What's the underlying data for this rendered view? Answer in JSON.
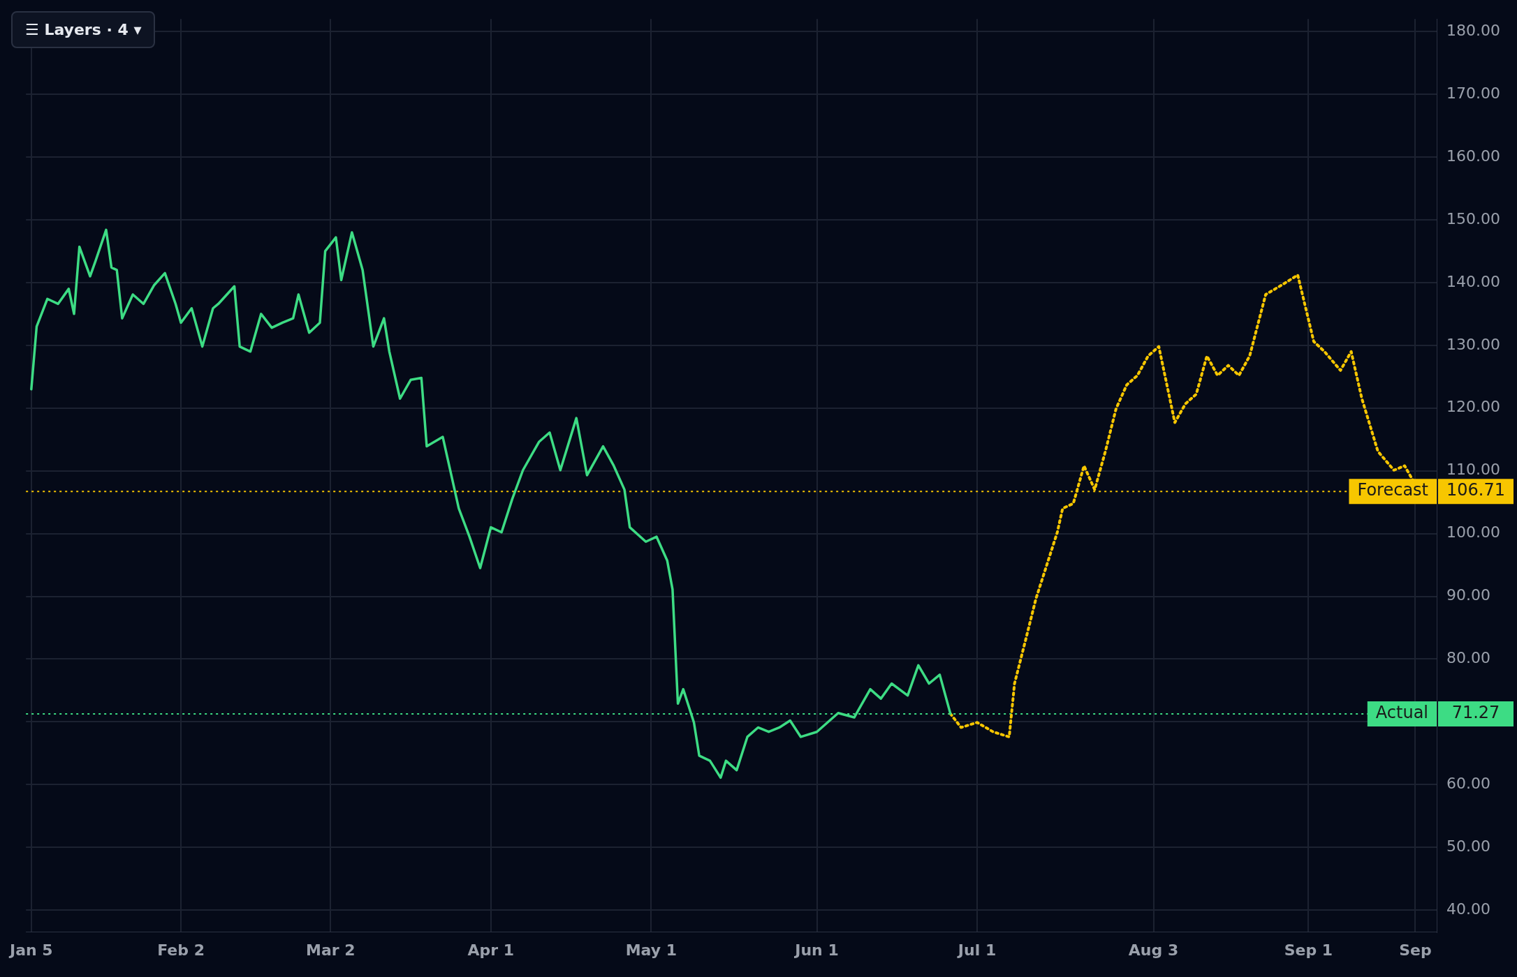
{
  "chart_data": {
    "type": "line",
    "xlim": [
      "--01-04",
      "--09-25"
    ],
    "xticks": [
      {
        "value": "--01-05",
        "label": "Jan 5"
      },
      {
        "value": "--02-02",
        "label": "Feb 2"
      },
      {
        "value": "--03-02",
        "label": "Mar 2"
      },
      {
        "value": "--04-01",
        "label": "Apr 1"
      },
      {
        "value": "--05-01",
        "label": "May 1"
      },
      {
        "value": "--06-01",
        "label": "Jun 1"
      },
      {
        "value": "--07-01",
        "label": "Jul 1"
      },
      {
        "value": "--08-03",
        "label": "Aug 3"
      },
      {
        "value": "--09-01",
        "label": "Sep 1"
      },
      {
        "value": "--09-21",
        "label": "Sep"
      }
    ],
    "ylim": [
      36.5,
      182
    ],
    "yticks": [
      {
        "value": 40,
        "label": "40.00"
      },
      {
        "value": 50,
        "label": "50.00"
      },
      {
        "value": 60,
        "label": "60.00"
      },
      {
        "value": 70,
        "label": null
      },
      {
        "value": 80,
        "label": "80.00"
      },
      {
        "value": 90,
        "label": "90.00"
      },
      {
        "value": 100,
        "label": "100.00"
      },
      {
        "value": 110,
        "label": "110.00"
      },
      {
        "value": 120,
        "label": "120.00"
      },
      {
        "value": 130,
        "label": "130.00"
      },
      {
        "value": 140,
        "label": "140.00"
      },
      {
        "value": 150,
        "label": "150.00"
      },
      {
        "value": 160,
        "label": "160.00"
      },
      {
        "value": 170,
        "label": "170.00"
      },
      {
        "value": 180,
        "label": "180.00"
      }
    ],
    "grid": true,
    "legend": false,
    "marker": "none",
    "series": [
      {
        "color": "#3ddc84",
        "line_style": "solid",
        "x": [
          "--01-05",
          "--01-06",
          "--01-08",
          "--01-10",
          "--01-12",
          "--01-13",
          "--01-14",
          "--01-16",
          "--01-17",
          "--01-19",
          "--01-20",
          "--01-21",
          "--01-22",
          "--01-24",
          "--01-26",
          "--01-28",
          "--01-30",
          "--02-01",
          "--02-02",
          "--02-04",
          "--02-06",
          "--02-08",
          "--02-09",
          "--02-12",
          "--02-13",
          "--02-15",
          "--02-17",
          "--02-19",
          "--02-21",
          "--02-23",
          "--02-24",
          "--02-26",
          "--02-28",
          "--03-01",
          "--03-03",
          "--03-04",
          "--03-06",
          "--03-08",
          "--03-10",
          "--03-12",
          "--03-13",
          "--03-15",
          "--03-17",
          "--03-19",
          "--03-20",
          "--03-23",
          "--03-24",
          "--03-26",
          "--03-28",
          "--03-30",
          "--04-01",
          "--04-03",
          "--04-05",
          "--04-07",
          "--04-10",
          "--04-12",
          "--04-14",
          "--04-17",
          "--04-19",
          "--04-22",
          "--04-24",
          "--04-26",
          "--04-27",
          "--04-30",
          "--05-02",
          "--05-04",
          "--05-05",
          "--05-06",
          "--05-07",
          "--05-09",
          "--05-10",
          "--05-12",
          "--05-14",
          "--05-15",
          "--05-17",
          "--05-19",
          "--05-21",
          "--05-23",
          "--05-25",
          "--05-27",
          "--05-29",
          "--06-01",
          "--06-03",
          "--06-05",
          "--06-08",
          "--06-11",
          "--06-13",
          "--06-15",
          "--06-18",
          "--06-20",
          "--06-22",
          "--06-24",
          "--06-26"
        ],
        "values": [
          123,
          133,
          137.4,
          136.6,
          139,
          135,
          145.7,
          141,
          143.4,
          148.4,
          142.4,
          142,
          134.3,
          138.1,
          136.6,
          139.6,
          141.5,
          136.6,
          133.6,
          135.9,
          129.8,
          135.9,
          136.6,
          139.4,
          129.8,
          129,
          135,
          132.8,
          133.6,
          134.3,
          138.1,
          132,
          133.6,
          145,
          147.2,
          140.4,
          148,
          142,
          129.8,
          134.3,
          129,
          121.5,
          124.5,
          124.8,
          113.9,
          115.4,
          111.6,
          104,
          99.5,
          94.5,
          101,
          100.2,
          105.5,
          110.1,
          114.6,
          116.1,
          110.1,
          118.4,
          109.3,
          113.9,
          110.8,
          107,
          101,
          98.7,
          99.5,
          95.7,
          91.1,
          72.9,
          75.2,
          69.9,
          64.6,
          63.8,
          61.1,
          63.8,
          62.3,
          67.6,
          69.1,
          68.4,
          69.1,
          70.2,
          67.6,
          68.4,
          69.9,
          71.4,
          70.7,
          75.2,
          73.7,
          76.1,
          74.2,
          79,
          76.1,
          77.5,
          71.3
        ]
      },
      {
        "color": "#f7c600",
        "line_style": "dotted",
        "x": [
          "--06-26",
          "--06-28",
          "--07-01",
          "--07-04",
          "--07-07",
          "--07-08",
          "--07-10",
          "--07-12",
          "--07-14",
          "--07-16",
          "--07-17",
          "--07-19",
          "--07-21",
          "--07-23",
          "--07-25",
          "--07-27",
          "--07-29",
          "--07-31",
          "--08-02",
          "--08-04",
          "--08-07",
          "--08-09",
          "--08-11",
          "--08-13",
          "--08-15",
          "--08-17",
          "--08-19",
          "--08-21",
          "--08-24",
          "--08-27",
          "--08-30",
          "--09-02",
          "--09-04",
          "--09-07",
          "--09-09",
          "--09-11",
          "--09-14",
          "--09-17",
          "--09-19",
          "--09-21"
        ],
        "values": [
          71.3,
          69.1,
          69.9,
          68.4,
          67.6,
          76.1,
          82.8,
          89.6,
          94.9,
          100.2,
          104,
          104.8,
          110.8,
          107,
          113.1,
          119.9,
          123.7,
          125.2,
          128.3,
          129.8,
          117.7,
          120.7,
          122.2,
          128.3,
          125.2,
          126.8,
          125.2,
          128.3,
          138.1,
          139.6,
          141.2,
          130.6,
          129,
          126,
          129,
          121.5,
          113.1,
          110.1,
          110.8,
          107.8
        ]
      }
    ],
    "ref_lines": [
      {
        "axis": "y",
        "value": 106.71,
        "label": "Forecast",
        "color": "#f7c600",
        "line_style": "dotted"
      },
      {
        "axis": "y",
        "value": 71.27,
        "label": "Actual",
        "color": "#3ddc84",
        "line_style": "dotted"
      }
    ],
    "annotations": [
      "☰ Layers · 4 ▾",
      "106.71",
      "71.27"
    ]
  }
}
